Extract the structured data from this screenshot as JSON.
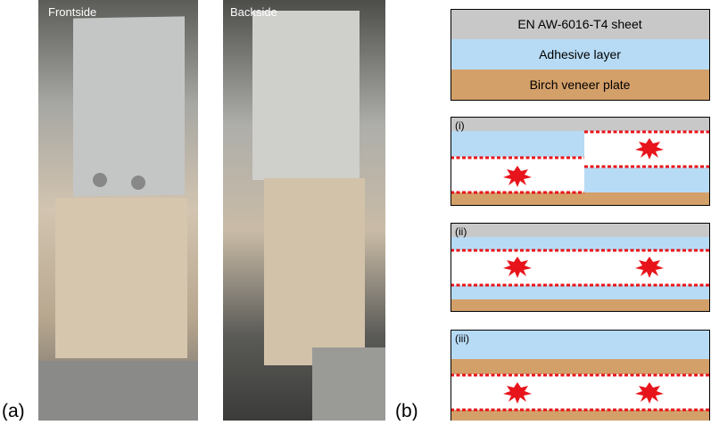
{
  "photos": [
    {
      "label": "Frontside"
    },
    {
      "label": "Backside"
    }
  ],
  "panel_labels": {
    "a": "(a)",
    "b": "(b)"
  },
  "legend": [
    "EN AW-6016-T4 sheet",
    "Adhesive layer",
    "Birch veneer plate"
  ],
  "cases": [
    "(i)",
    "(ii)",
    "(iii)"
  ]
}
